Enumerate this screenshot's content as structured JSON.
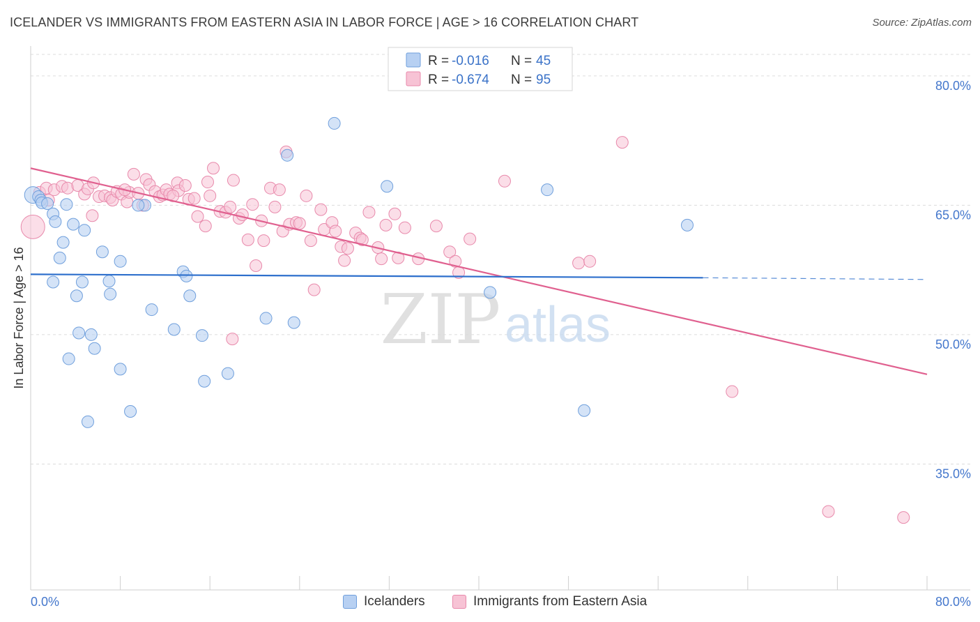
{
  "header": {
    "title": "ICELANDER VS IMMIGRANTS FROM EASTERN ASIA IN LABOR FORCE | AGE > 16 CORRELATION CHART",
    "source": "Source: ZipAtlas.com"
  },
  "watermark": {
    "zip": "ZIP",
    "atlas": "atlas"
  },
  "legend_top": {
    "r_label": "R =",
    "n_label": "N =",
    "rows": [
      {
        "r": "-0.016",
        "n": "45"
      },
      {
        "r": "-0.674",
        "n": "95"
      }
    ]
  },
  "legend_bottom": [
    {
      "label": "Icelanders"
    },
    {
      "label": "Immigrants from Eastern Asia"
    }
  ],
  "chart_data": {
    "type": "scatter",
    "title": "ICELANDER VS IMMIGRANTS FROM EASTERN ASIA IN LABOR FORCE | AGE > 16 CORRELATION CHART",
    "xlabel": "",
    "ylabel": "In Labor Force | Age > 16",
    "xlim": [
      0,
      80
    ],
    "ylim": [
      20.4,
      82.5
    ],
    "x_ticks": [
      "0.0%",
      "80.0%"
    ],
    "y_ticks": [
      {
        "value": 80,
        "label": "80.0%"
      },
      {
        "value": 65,
        "label": "65.0%"
      },
      {
        "value": 50,
        "label": "50.0%"
      },
      {
        "value": 35,
        "label": "35.0%"
      }
    ],
    "grid": true,
    "colors": {
      "icelanders_fill": "#b7d0f2",
      "icelanders_stroke": "#6f9fdc",
      "icelanders_line": "#2d6fcc",
      "immigrants_fill": "#f7c3d5",
      "immigrants_stroke": "#e889ab",
      "immigrants_line": "#e0608f",
      "tick_label": "#4477cc"
    },
    "series": [
      {
        "name": "Icelanders",
        "trend": {
          "x0": 0,
          "y0": 57.0,
          "x1": 60,
          "y1": 56.6,
          "dash_to": 80,
          "dash_y": 56.4
        },
        "points": [
          [
            0.2,
            66.2
          ],
          [
            0.7,
            66.0
          ],
          [
            0.9,
            65.6
          ],
          [
            1.0,
            65.3
          ],
          [
            1.5,
            65.2
          ],
          [
            2.0,
            64.0
          ],
          [
            3.2,
            65.1
          ],
          [
            2.2,
            63.1
          ],
          [
            3.8,
            62.8
          ],
          [
            4.8,
            62.1
          ],
          [
            2.9,
            60.7
          ],
          [
            6.4,
            59.6
          ],
          [
            8.0,
            58.5
          ],
          [
            2.6,
            58.9
          ],
          [
            13.6,
            57.3
          ],
          [
            13.9,
            56.8
          ],
          [
            2.0,
            56.1
          ],
          [
            4.6,
            56.1
          ],
          [
            7.0,
            56.2
          ],
          [
            4.1,
            54.5
          ],
          [
            7.1,
            54.7
          ],
          [
            14.2,
            54.5
          ],
          [
            10.8,
            52.9
          ],
          [
            21.0,
            51.9
          ],
          [
            23.5,
            51.4
          ],
          [
            4.3,
            50.2
          ],
          [
            5.4,
            50.0
          ],
          [
            12.8,
            50.6
          ],
          [
            15.3,
            49.9
          ],
          [
            5.7,
            48.4
          ],
          [
            3.4,
            47.2
          ],
          [
            8.0,
            46.0
          ],
          [
            17.6,
            45.5
          ],
          [
            15.5,
            44.6
          ],
          [
            8.9,
            41.1
          ],
          [
            5.1,
            39.9
          ],
          [
            27.1,
            74.5
          ],
          [
            22.9,
            70.8
          ],
          [
            31.8,
            67.2
          ],
          [
            46.1,
            66.8
          ],
          [
            58.6,
            62.7
          ],
          [
            41.0,
            54.9
          ],
          [
            49.4,
            41.2
          ],
          [
            10.2,
            65.0
          ],
          [
            9.6,
            65.0
          ]
        ]
      },
      {
        "name": "Immigrants from Eastern Asia",
        "trend": {
          "x0": 0,
          "y0": 69.3,
          "x1": 80,
          "y1": 45.4
        },
        "points": [
          [
            0.2,
            62.5
          ],
          [
            0.8,
            66.5
          ],
          [
            1.4,
            67.0
          ],
          [
            1.6,
            65.6
          ],
          [
            2.1,
            66.8
          ],
          [
            2.8,
            67.2
          ],
          [
            3.3,
            67.0
          ],
          [
            4.2,
            67.3
          ],
          [
            4.8,
            66.3
          ],
          [
            5.1,
            66.9
          ],
          [
            5.6,
            67.6
          ],
          [
            5.5,
            63.8
          ],
          [
            6.1,
            66.0
          ],
          [
            6.6,
            66.1
          ],
          [
            7.1,
            65.9
          ],
          [
            7.3,
            65.6
          ],
          [
            7.7,
            66.6
          ],
          [
            8.1,
            66.3
          ],
          [
            8.6,
            65.4
          ],
          [
            8.8,
            66.5
          ],
          [
            9.2,
            68.6
          ],
          [
            9.6,
            66.4
          ],
          [
            10.0,
            65.0
          ],
          [
            10.3,
            68.0
          ],
          [
            10.6,
            67.4
          ],
          [
            11.1,
            66.6
          ],
          [
            11.5,
            66.0
          ],
          [
            11.8,
            66.2
          ],
          [
            12.1,
            66.8
          ],
          [
            12.4,
            66.3
          ],
          [
            13.1,
            67.6
          ],
          [
            13.2,
            66.7
          ],
          [
            13.8,
            67.3
          ],
          [
            14.1,
            65.7
          ],
          [
            14.6,
            65.8
          ],
          [
            14.9,
            63.7
          ],
          [
            15.6,
            62.6
          ],
          [
            16.0,
            66.1
          ],
          [
            16.3,
            69.3
          ],
          [
            16.9,
            64.3
          ],
          [
            17.4,
            64.2
          ],
          [
            17.8,
            64.8
          ],
          [
            18.1,
            67.9
          ],
          [
            18.6,
            63.5
          ],
          [
            18.9,
            63.9
          ],
          [
            19.4,
            61.0
          ],
          [
            19.8,
            65.1
          ],
          [
            20.1,
            58.0
          ],
          [
            20.6,
            63.2
          ],
          [
            20.8,
            60.9
          ],
          [
            21.4,
            67.0
          ],
          [
            21.8,
            64.8
          ],
          [
            22.2,
            66.8
          ],
          [
            22.5,
            62.0
          ],
          [
            22.8,
            71.2
          ],
          [
            23.1,
            62.8
          ],
          [
            23.7,
            63.0
          ],
          [
            24.6,
            66.1
          ],
          [
            25.0,
            60.9
          ],
          [
            25.3,
            55.2
          ],
          [
            25.9,
            64.5
          ],
          [
            26.2,
            62.2
          ],
          [
            26.9,
            63.0
          ],
          [
            27.2,
            62.0
          ],
          [
            27.7,
            60.2
          ],
          [
            28.0,
            58.6
          ],
          [
            28.3,
            60.0
          ],
          [
            29.0,
            61.8
          ],
          [
            29.4,
            61.2
          ],
          [
            29.6,
            61.0
          ],
          [
            30.2,
            64.2
          ],
          [
            31.0,
            60.1
          ],
          [
            31.3,
            58.8
          ],
          [
            31.7,
            62.7
          ],
          [
            32.5,
            64.0
          ],
          [
            32.8,
            58.9
          ],
          [
            33.4,
            62.4
          ],
          [
            34.6,
            58.8
          ],
          [
            36.2,
            62.6
          ],
          [
            37.4,
            59.6
          ],
          [
            37.9,
            58.5
          ],
          [
            38.2,
            57.2
          ],
          [
            39.2,
            61.1
          ],
          [
            42.3,
            67.8
          ],
          [
            48.9,
            58.3
          ],
          [
            49.9,
            58.5
          ],
          [
            18.0,
            49.5
          ],
          [
            52.8,
            72.3
          ],
          [
            62.6,
            43.4
          ],
          [
            71.2,
            29.5
          ],
          [
            77.9,
            28.8
          ],
          [
            8.4,
            66.8
          ],
          [
            12.7,
            66.1
          ],
          [
            15.8,
            67.7
          ],
          [
            24.0,
            62.9
          ]
        ]
      }
    ]
  }
}
